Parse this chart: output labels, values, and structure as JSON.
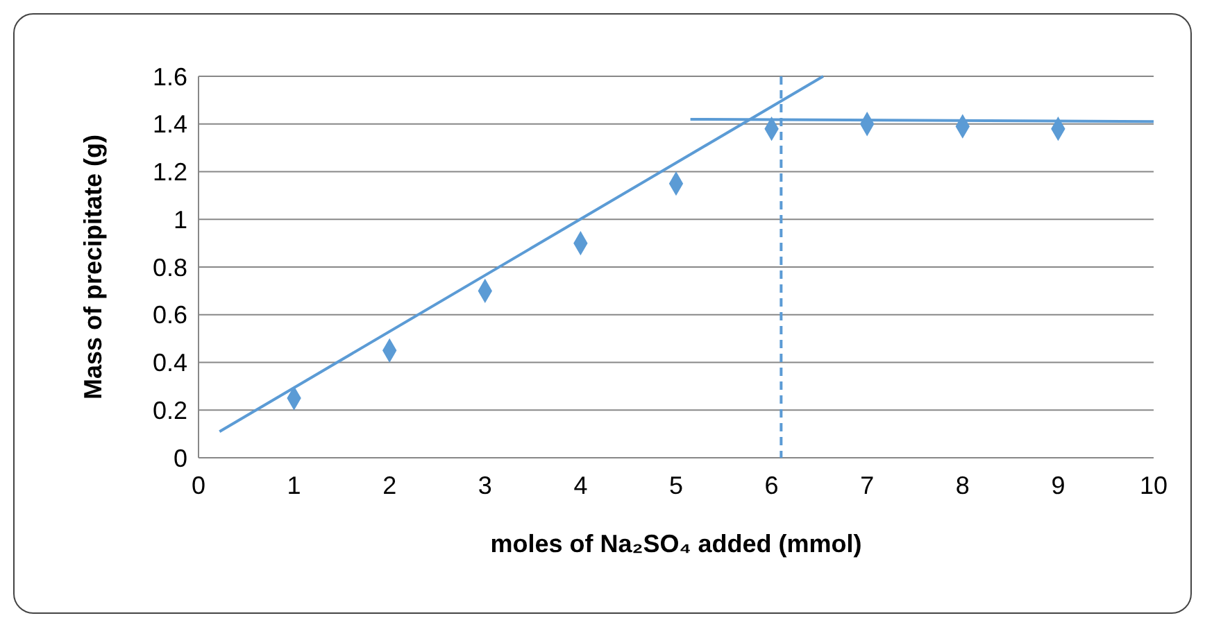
{
  "chart_data": {
    "type": "scatter",
    "xlabel": "moles of Na₂SO₄ added (mmol)",
    "ylabel": "Mass of precipitate (g)",
    "xlim": [
      0,
      10
    ],
    "xticks": [
      0,
      1,
      2,
      3,
      4,
      5,
      6,
      7,
      8,
      9,
      10
    ],
    "ylim": [
      0,
      1.6
    ],
    "yticks": [
      0,
      0.2,
      0.4,
      0.6,
      0.8,
      1,
      1.2,
      1.4,
      1.6
    ],
    "grid": "y",
    "marker": "diamond",
    "series": [
      {
        "color": "#5b9bd5",
        "x": [
          1,
          2,
          3,
          4,
          5,
          6,
          7,
          8,
          9
        ],
        "values": [
          0.25,
          0.45,
          0.7,
          0.9,
          1.15,
          1.38,
          1.4,
          1.39,
          1.38
        ]
      },
      {
        "type": "line",
        "color": "#5b9bd5",
        "marker": "none",
        "line_style": "solid",
        "x": [
          0.22,
          6.54
        ],
        "values": [
          0.11,
          1.6
        ]
      },
      {
        "type": "line",
        "color": "#5b9bd5",
        "marker": "none",
        "line_style": "solid",
        "x": [
          5.15,
          10
        ],
        "values": [
          1.42,
          1.41
        ]
      }
    ],
    "ref_lines": [
      {
        "axis": "x",
        "value": 6.1,
        "label": null,
        "color": "#5b9bd5",
        "line_style": "dashed"
      }
    ]
  }
}
